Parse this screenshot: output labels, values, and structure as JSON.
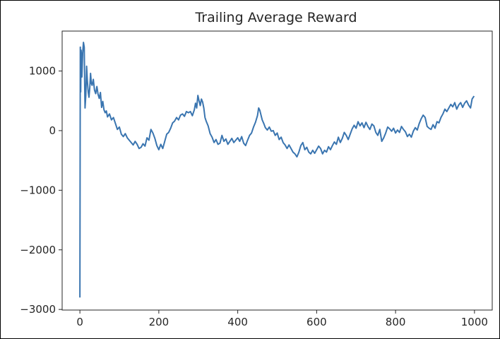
{
  "colors": {
    "line": "#3a75b0",
    "axis": "#262626",
    "background": "#ffffff"
  },
  "chart_data": {
    "type": "line",
    "title": "Trailing Average Reward",
    "xlabel": "",
    "ylabel": "",
    "xlim": [
      -45,
      1045
    ],
    "ylim": [
      -3010,
      1670
    ],
    "xticks": [
      0,
      200,
      400,
      600,
      800,
      1000
    ],
    "yticks": [
      -3000,
      -2000,
      -1000,
      0,
      1000
    ],
    "xtick_labels": [
      "0",
      "200",
      "400",
      "600",
      "800",
      "1000"
    ],
    "ytick_labels": [
      "−3000",
      "−2000",
      "−1000",
      "0",
      "1000"
    ],
    "grid": false,
    "legend": "none",
    "series": [
      {
        "points": [
          [
            0,
            -2800
          ],
          [
            1,
            1400
          ],
          [
            2,
            650
          ],
          [
            3,
            1350
          ],
          [
            4,
            1250
          ],
          [
            5,
            900
          ],
          [
            7,
            1300
          ],
          [
            9,
            1480
          ],
          [
            11,
            1400
          ],
          [
            12,
            820
          ],
          [
            13,
            380
          ],
          [
            15,
            600
          ],
          [
            17,
            1080
          ],
          [
            19,
            820
          ],
          [
            21,
            650
          ],
          [
            23,
            560
          ],
          [
            25,
            720
          ],
          [
            27,
            960
          ],
          [
            29,
            790
          ],
          [
            31,
            760
          ],
          [
            34,
            860
          ],
          [
            37,
            680
          ],
          [
            40,
            620
          ],
          [
            43,
            740
          ],
          [
            46,
            610
          ],
          [
            49,
            540
          ],
          [
            52,
            640
          ],
          [
            55,
            390
          ],
          [
            58,
            490
          ],
          [
            61,
            350
          ],
          [
            64,
            300
          ],
          [
            67,
            330
          ],
          [
            70,
            230
          ],
          [
            75,
            280
          ],
          [
            80,
            180
          ],
          [
            85,
            220
          ],
          [
            90,
            120
          ],
          [
            95,
            20
          ],
          [
            100,
            60
          ],
          [
            105,
            -60
          ],
          [
            110,
            -100
          ],
          [
            115,
            -50
          ],
          [
            120,
            -120
          ],
          [
            125,
            -160
          ],
          [
            130,
            -200
          ],
          [
            135,
            -240
          ],
          [
            140,
            -180
          ],
          [
            145,
            -230
          ],
          [
            150,
            -300
          ],
          [
            155,
            -280
          ],
          [
            160,
            -220
          ],
          [
            165,
            -260
          ],
          [
            170,
            -120
          ],
          [
            175,
            -160
          ],
          [
            180,
            20
          ],
          [
            185,
            -40
          ],
          [
            190,
            -130
          ],
          [
            195,
            -250
          ],
          [
            200,
            -320
          ],
          [
            205,
            -230
          ],
          [
            210,
            -300
          ],
          [
            215,
            -180
          ],
          [
            220,
            -60
          ],
          [
            225,
            -30
          ],
          [
            230,
            40
          ],
          [
            235,
            130
          ],
          [
            240,
            160
          ],
          [
            245,
            220
          ],
          [
            250,
            180
          ],
          [
            255,
            260
          ],
          [
            260,
            280
          ],
          [
            265,
            240
          ],
          [
            270,
            320
          ],
          [
            275,
            300
          ],
          [
            280,
            320
          ],
          [
            285,
            250
          ],
          [
            290,
            350
          ],
          [
            293,
            460
          ],
          [
            296,
            380
          ],
          [
            299,
            590
          ],
          [
            302,
            500
          ],
          [
            305,
            420
          ],
          [
            308,
            530
          ],
          [
            311,
            480
          ],
          [
            314,
            380
          ],
          [
            317,
            220
          ],
          [
            320,
            160
          ],
          [
            325,
            80
          ],
          [
            330,
            -50
          ],
          [
            335,
            -110
          ],
          [
            340,
            -200
          ],
          [
            345,
            -150
          ],
          [
            350,
            -230
          ],
          [
            355,
            -210
          ],
          [
            360,
            -80
          ],
          [
            365,
            -180
          ],
          [
            370,
            -140
          ],
          [
            375,
            -230
          ],
          [
            380,
            -180
          ],
          [
            385,
            -130
          ],
          [
            390,
            -200
          ],
          [
            395,
            -160
          ],
          [
            400,
            -120
          ],
          [
            405,
            -180
          ],
          [
            410,
            -100
          ],
          [
            415,
            -210
          ],
          [
            420,
            -250
          ],
          [
            425,
            -160
          ],
          [
            430,
            -80
          ],
          [
            435,
            -40
          ],
          [
            440,
            60
          ],
          [
            445,
            140
          ],
          [
            450,
            250
          ],
          [
            453,
            380
          ],
          [
            456,
            340
          ],
          [
            459,
            260
          ],
          [
            462,
            180
          ],
          [
            466,
            120
          ],
          [
            470,
            50
          ],
          [
            475,
            10
          ],
          [
            480,
            60
          ],
          [
            485,
            -10
          ],
          [
            490,
            0
          ],
          [
            495,
            -80
          ],
          [
            500,
            -40
          ],
          [
            505,
            -150
          ],
          [
            510,
            -110
          ],
          [
            515,
            -200
          ],
          [
            520,
            -240
          ],
          [
            525,
            -300
          ],
          [
            530,
            -240
          ],
          [
            535,
            -300
          ],
          [
            540,
            -360
          ],
          [
            545,
            -390
          ],
          [
            550,
            -440
          ],
          [
            555,
            -360
          ],
          [
            560,
            -250
          ],
          [
            565,
            -200
          ],
          [
            570,
            -320
          ],
          [
            575,
            -280
          ],
          [
            580,
            -360
          ],
          [
            585,
            -390
          ],
          [
            590,
            -330
          ],
          [
            595,
            -380
          ],
          [
            600,
            -320
          ],
          [
            605,
            -260
          ],
          [
            610,
            -300
          ],
          [
            615,
            -390
          ],
          [
            620,
            -330
          ],
          [
            625,
            -360
          ],
          [
            630,
            -270
          ],
          [
            635,
            -320
          ],
          [
            640,
            -250
          ],
          [
            645,
            -190
          ],
          [
            650,
            -230
          ],
          [
            655,
            -110
          ],
          [
            660,
            -200
          ],
          [
            665,
            -130
          ],
          [
            670,
            -30
          ],
          [
            675,
            -80
          ],
          [
            680,
            -150
          ],
          [
            685,
            -60
          ],
          [
            690,
            30
          ],
          [
            695,
            90
          ],
          [
            700,
            40
          ],
          [
            705,
            150
          ],
          [
            710,
            80
          ],
          [
            715,
            130
          ],
          [
            720,
            50
          ],
          [
            725,
            140
          ],
          [
            730,
            70
          ],
          [
            735,
            20
          ],
          [
            740,
            110
          ],
          [
            745,
            80
          ],
          [
            750,
            -30
          ],
          [
            755,
            -80
          ],
          [
            760,
            20
          ],
          [
            765,
            -180
          ],
          [
            770,
            -120
          ],
          [
            775,
            -40
          ],
          [
            780,
            60
          ],
          [
            785,
            30
          ],
          [
            790,
            -10
          ],
          [
            795,
            40
          ],
          [
            800,
            -40
          ],
          [
            805,
            10
          ],
          [
            810,
            -30
          ],
          [
            815,
            70
          ],
          [
            820,
            20
          ],
          [
            825,
            -20
          ],
          [
            830,
            -100
          ],
          [
            835,
            -60
          ],
          [
            840,
            -110
          ],
          [
            845,
            -10
          ],
          [
            850,
            50
          ],
          [
            855,
            10
          ],
          [
            860,
            120
          ],
          [
            865,
            200
          ],
          [
            870,
            260
          ],
          [
            875,
            220
          ],
          [
            880,
            70
          ],
          [
            885,
            40
          ],
          [
            890,
            20
          ],
          [
            895,
            100
          ],
          [
            900,
            40
          ],
          [
            905,
            150
          ],
          [
            910,
            130
          ],
          [
            915,
            220
          ],
          [
            920,
            280
          ],
          [
            925,
            360
          ],
          [
            930,
            320
          ],
          [
            935,
            380
          ],
          [
            940,
            440
          ],
          [
            945,
            400
          ],
          [
            950,
            470
          ],
          [
            955,
            360
          ],
          [
            960,
            430
          ],
          [
            965,
            470
          ],
          [
            970,
            390
          ],
          [
            975,
            460
          ],
          [
            980,
            500
          ],
          [
            985,
            430
          ],
          [
            990,
            380
          ],
          [
            994,
            530
          ],
          [
            997,
            560
          ],
          [
            999,
            580
          ]
        ]
      }
    ]
  }
}
